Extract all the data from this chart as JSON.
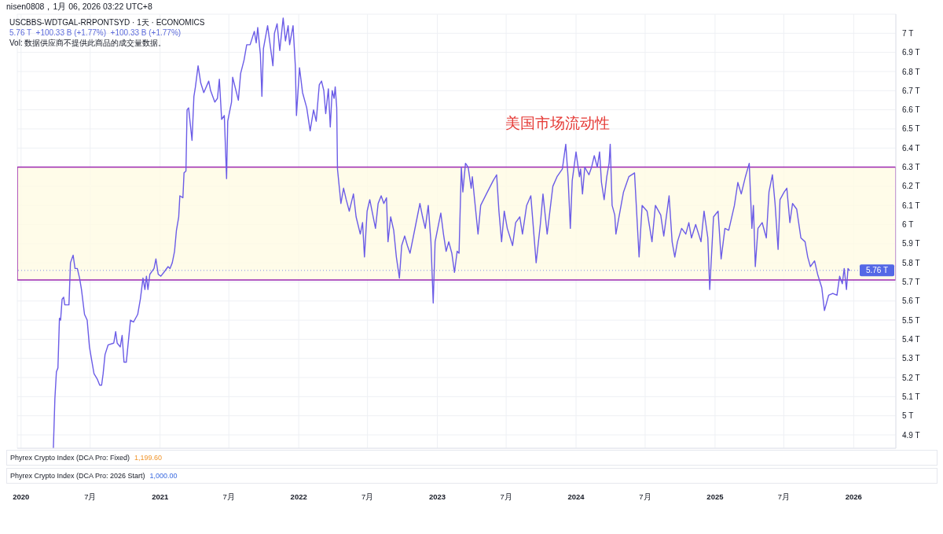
{
  "chart_data": {
    "type": "line",
    "title": "USCBBS-WDTGAL-RRPONTSYD · 1天 · ECONOMICS",
    "subtitle": "5.76 T  +100.33 B (+1.77%)  +100.33 B (+1.77%)",
    "annotations": [
      "nisen0808，1月 06, 2026 03:22 UTC+8",
      "Vol: 数据供应商不提供此商品的成交量数据。",
      "美国市场流动性",
      "Phyrex Crypto Index (DCA Pro: Fixed)",
      "1,199.60",
      "Phyrex Crypto Index (DCA Pro: 2026 Start)",
      "1,000.00"
    ],
    "x": [
      "2020-03-26",
      "2020-03-30",
      "2020-04-03",
      "2020-04-07",
      "2020-04-11",
      "2020-04-14",
      "2020-04-18",
      "2020-04-22",
      "2020-04-25",
      "2020-05-06",
      "2020-05-10",
      "2020-05-17",
      "2020-05-22",
      "2020-05-28",
      "2020-06-03",
      "2020-06-08",
      "2020-06-16",
      "2020-06-23",
      "2020-06-29",
      "2020-07-04",
      "2020-07-11",
      "2020-07-20",
      "2020-07-26",
      "2020-07-31",
      "2020-08-04",
      "2020-08-09",
      "2020-08-17",
      "2020-09-01",
      "2020-09-06",
      "2020-09-10",
      "2020-09-18",
      "2020-09-23",
      "2020-09-28",
      "2020-10-04",
      "2020-10-08",
      "2020-10-15",
      "2020-10-23",
      "2020-11-03",
      "2020-11-10",
      "2020-11-17",
      "2020-11-22",
      "2020-11-26",
      "2020-11-30",
      "2020-12-05",
      "2020-12-16",
      "2020-12-21",
      "2020-12-27",
      "2021-01-03",
      "2021-01-11",
      "2021-01-22",
      "2021-01-27",
      "2021-02-02",
      "2021-02-08",
      "2021-02-13",
      "2021-02-19",
      "2021-02-22",
      "2021-03-02",
      "2021-03-05",
      "2021-03-10",
      "2021-03-13",
      "2021-03-17",
      "2021-03-26",
      "2021-03-31",
      "2021-04-04",
      "2021-04-11",
      "2021-04-18",
      "2021-04-26",
      "2021-05-09",
      "2021-05-14",
      "2021-05-25",
      "2021-06-01",
      "2021-06-06",
      "2021-06-12",
      "2021-06-19",
      "2021-06-25",
      "2021-06-28",
      "2021-07-08",
      "2021-07-11",
      "2021-07-26",
      "2021-08-01",
      "2021-08-10",
      "2021-08-17",
      "2021-08-26",
      "2021-09-06",
      "2021-09-11",
      "2021-09-15",
      "2021-09-22",
      "2021-09-26",
      "2021-09-30",
      "2021-10-11",
      "2021-10-25",
      "2021-10-29",
      "2021-11-05",
      "2021-11-12",
      "2021-11-21",
      "2021-11-27",
      "2021-12-04",
      "2021-12-08",
      "2021-12-17",
      "2021-12-23",
      "2021-12-26",
      "2022-01-03",
      "2022-01-11",
      "2022-01-22",
      "2022-01-31",
      "2022-02-09",
      "2022-02-16",
      "2022-02-24",
      "2022-03-02",
      "2022-03-08",
      "2022-03-13",
      "2022-03-20",
      "2022-03-25",
      "2022-03-30",
      "2022-04-04",
      "2022-04-07",
      "2022-04-11",
      "2022-04-13",
      "2022-04-18",
      "2022-04-22",
      "2022-04-29",
      "2022-05-06",
      "2022-05-14",
      "2022-05-25",
      "2022-06-01",
      "2022-06-12",
      "2022-06-18",
      "2022-06-23",
      "2022-06-30",
      "2022-07-07",
      "2022-07-22",
      "2022-07-29",
      "2022-08-06",
      "2022-08-13",
      "2022-08-20",
      "2022-08-24",
      "2022-08-31",
      "2022-09-08",
      "2022-09-15",
      "2022-09-23",
      "2022-09-29",
      "2022-10-07",
      "2022-10-14",
      "2022-10-21",
      "2022-11-05",
      "2022-11-16",
      "2022-11-23",
      "2022-11-30",
      "2022-12-08",
      "2022-12-15",
      "2022-12-21",
      "2022-12-26",
      "2023-01-10",
      "2023-01-17",
      "2023-01-24",
      "2023-01-31",
      "2023-02-08",
      "2023-02-15",
      "2023-02-22",
      "2023-02-27",
      "2023-03-05",
      "2023-03-09",
      "2023-03-16",
      "2023-03-23",
      "2023-03-31",
      "2023-04-03",
      "2023-04-18",
      "2023-04-25",
      "2023-05-10",
      "2023-05-28",
      "2023-06-06",
      "2023-06-12",
      "2023-06-19",
      "2023-06-26",
      "2023-07-04",
      "2023-07-18",
      "2023-07-26",
      "2023-08-06",
      "2023-08-13",
      "2023-08-24",
      "2023-09-04",
      "2023-09-18",
      "2023-09-29",
      "2023-10-06",
      "2023-10-17",
      "2023-11-01",
      "2023-11-12",
      "2023-11-26",
      "2023-12-05",
      "2023-12-11",
      "2023-12-17",
      "2023-12-22",
      "2024-01-01",
      "2024-01-10",
      "2024-01-13",
      "2024-01-18",
      "2024-01-24",
      "2024-02-04",
      "2024-02-11",
      "2024-02-18",
      "2024-02-26",
      "2024-03-03",
      "2024-03-08",
      "2024-03-15",
      "2024-03-22",
      "2024-03-28",
      "2024-03-31",
      "2024-04-05",
      "2024-04-12",
      "2024-04-15",
      "2024-04-24",
      "2024-05-05",
      "2024-05-19",
      "2024-06-03",
      "2024-06-15",
      "2024-06-23",
      "2024-07-06",
      "2024-07-19",
      "2024-07-28",
      "2024-08-11",
      "2024-08-19",
      "2024-09-02",
      "2024-09-10",
      "2024-09-17",
      "2024-09-24",
      "2024-10-05",
      "2024-10-16",
      "2024-10-24",
      "2024-10-31",
      "2024-11-11",
      "2024-11-25",
      "2024-12-03",
      "2024-12-13",
      "2024-12-18",
      "2024-12-28",
      "2025-01-09",
      "2025-01-17",
      "2025-01-27",
      "2025-02-06",
      "2025-02-21",
      "2025-03-02",
      "2025-03-11",
      "2025-03-22",
      "2025-04-01",
      "2025-04-08",
      "2025-04-12",
      "2025-04-17",
      "2025-04-24",
      "2025-05-05",
      "2025-05-16",
      "2025-05-23",
      "2025-06-01",
      "2025-06-08",
      "2025-06-16",
      "2025-06-21",
      "2025-07-02",
      "2025-07-09",
      "2025-07-17",
      "2025-07-24",
      "2025-08-04",
      "2025-08-15",
      "2025-08-26",
      "2025-09-02",
      "2025-09-09",
      "2025-09-20",
      "2025-09-28",
      "2025-10-09",
      "2025-10-16",
      "2025-10-27",
      "2025-11-07",
      "2025-11-18",
      "2025-11-25",
      "2025-12-02",
      "2025-12-07",
      "2025-12-13",
      "2025-12-17",
      "2025-12-21"
    ],
    "values": [
      4.83,
      5.09,
      5.23,
      5.25,
      5.51,
      5.5,
      5.61,
      5.62,
      5.58,
      5.58,
      5.8,
      5.84,
      5.77,
      5.77,
      5.72,
      5.66,
      5.53,
      5.5,
      5.36,
      5.3,
      5.22,
      5.19,
      5.16,
      5.16,
      5.22,
      5.32,
      5.37,
      5.38,
      5.44,
      5.38,
      5.36,
      5.42,
      5.28,
      5.28,
      5.36,
      5.5,
      5.49,
      5.53,
      5.61,
      5.72,
      5.66,
      5.73,
      5.66,
      5.74,
      5.77,
      5.82,
      5.74,
      5.73,
      5.75,
      5.78,
      5.77,
      5.8,
      5.86,
      5.97,
      6.04,
      6.15,
      6.14,
      6.27,
      6.28,
      6.6,
      6.61,
      6.44,
      6.67,
      6.72,
      6.83,
      6.74,
      6.69,
      6.75,
      6.7,
      6.64,
      6.66,
      6.76,
      6.55,
      6.57,
      6.24,
      6.54,
      6.64,
      6.77,
      6.65,
      6.79,
      6.86,
      6.94,
      6.94,
      7.01,
      6.95,
      7.03,
      6.89,
      6.67,
      6.92,
      7.04,
      6.83,
      7.0,
      7.05,
      6.91,
      7.08,
      6.96,
      7.04,
      6.94,
      7.04,
      6.83,
      6.57,
      6.82,
      6.69,
      6.61,
      6.49,
      6.6,
      6.54,
      6.73,
      6.75,
      6.7,
      6.58,
      6.71,
      6.51,
      6.7,
      6.66,
      6.72,
      6.61,
      6.29,
      6.19,
      6.11,
      6.19,
      6.13,
      6.07,
      6.16,
      6.04,
      5.95,
      6.01,
      5.83,
      6.07,
      6.13,
      5.98,
      6.11,
      6.15,
      6.11,
      6.14,
      5.91,
      6.04,
      5.97,
      5.83,
      5.72,
      5.89,
      5.94,
      5.89,
      5.85,
      6.0,
      6.11,
      6.04,
      5.98,
      6.1,
      5.91,
      5.59,
      5.91,
      6.06,
      5.95,
      5.86,
      5.91,
      5.85,
      5.75,
      5.86,
      5.85,
      6.3,
      6.17,
      6.32,
      6.3,
      6.19,
      6.25,
      5.95,
      6.1,
      6.16,
      6.23,
      6.26,
      6.07,
      5.91,
      6.07,
      5.98,
      5.89,
      6.01,
      6.04,
      5.95,
      6.1,
      6.15,
      5.8,
      6.0,
      6.16,
      5.95,
      6.2,
      6.25,
      6.29,
      6.42,
      6.25,
      5.98,
      6.23,
      6.38,
      6.25,
      6.29,
      6.16,
      6.3,
      6.26,
      6.3,
      6.36,
      6.3,
      6.38,
      6.22,
      6.13,
      6.25,
      6.32,
      6.42,
      6.1,
      6.05,
      5.95,
      6.05,
      6.17,
      6.25,
      6.27,
      5.83,
      6.1,
      6.07,
      5.91,
      6.1,
      6.05,
      5.94,
      6.15,
      5.91,
      5.83,
      5.91,
      5.98,
      5.95,
      6.01,
      5.93,
      6.0,
      5.91,
      6.07,
      5.93,
      5.66,
      6.04,
      6.07,
      5.82,
      5.98,
      5.97,
      6.1,
      6.22,
      6.16,
      6.25,
      6.32,
      5.98,
      6.1,
      5.78,
      5.98,
      6.01,
      5.93,
      6.17,
      6.26,
      6.11,
      5.87,
      6.13,
      6.17,
      6.19,
      6.01,
      6.11,
      6.08,
      5.93,
      5.91,
      5.83,
      5.78,
      5.81,
      5.74,
      5.67,
      5.55,
      5.63,
      5.64,
      5.63,
      5.73,
      5.69,
      5.77,
      5.66,
      5.77,
      5.76
    ],
    "color": "#6b5ce7",
    "marker": "none",
    "line_style": "solid",
    "xlim": [
      "2019-12-22",
      "2026-04-22"
    ],
    "xticks": [
      {
        "value": "2020",
        "label": "2020"
      },
      {
        "value": "2020-07",
        "label": "7月"
      },
      {
        "value": "2021",
        "label": "2021"
      },
      {
        "value": "2021-07",
        "label": "7月"
      },
      {
        "value": "2022",
        "label": "2022"
      },
      {
        "value": "2022-07",
        "label": "7月"
      },
      {
        "value": "2023",
        "label": "2023"
      },
      {
        "value": "2023-07",
        "label": "7月"
      },
      {
        "value": "2024",
        "label": "2024"
      },
      {
        "value": "2024-07",
        "label": "7月"
      },
      {
        "value": "2025",
        "label": "2025"
      },
      {
        "value": "2025-07",
        "label": "7月"
      },
      {
        "value": "2026",
        "label": "2026"
      }
    ],
    "ylim": [
      4.83,
      7.1
    ],
    "yticks": [
      {
        "value": 4.9,
        "label": "4.9 T"
      },
      {
        "value": 5,
        "label": "5 T"
      },
      {
        "value": 5.1,
        "label": "5.1 T"
      },
      {
        "value": 5.2,
        "label": "5.2 T"
      },
      {
        "value": 5.3,
        "label": "5.3 T"
      },
      {
        "value": 5.4,
        "label": "5.4 T"
      },
      {
        "value": 5.5,
        "label": "5.5 T"
      },
      {
        "value": 5.6,
        "label": "5.6 T"
      },
      {
        "value": 5.7,
        "label": "5.7 T"
      },
      {
        "value": 5.8,
        "label": "5.8 T"
      },
      {
        "value": 5.9,
        "label": "5.9 T"
      },
      {
        "value": 6,
        "label": "6 T"
      },
      {
        "value": 6.1,
        "label": "6.1 T"
      },
      {
        "value": 6.2,
        "label": "6.2 T"
      },
      {
        "value": 6.3,
        "label": "6.3 T"
      },
      {
        "value": 6.4,
        "label": "6.4 T"
      },
      {
        "value": 6.5,
        "label": "6.5 T"
      },
      {
        "value": 6.6,
        "label": "6.6 T"
      },
      {
        "value": 6.7,
        "label": "6.7 T"
      },
      {
        "value": 6.8,
        "label": "6.8 T"
      },
      {
        "value": 6.9,
        "label": "6.9 T"
      },
      {
        "value": 7,
        "label": "7 T"
      }
    ],
    "grid": true,
    "bands": [
      {
        "axis": "y",
        "from": 5.71,
        "to": 6.3,
        "color": "#9c27b0"
      }
    ],
    "ref_lines": [
      {
        "axis": "y",
        "value": 5.76,
        "label": "5.76 T",
        "color": "#5468e6",
        "line_style": "dotted"
      }
    ]
  }
}
